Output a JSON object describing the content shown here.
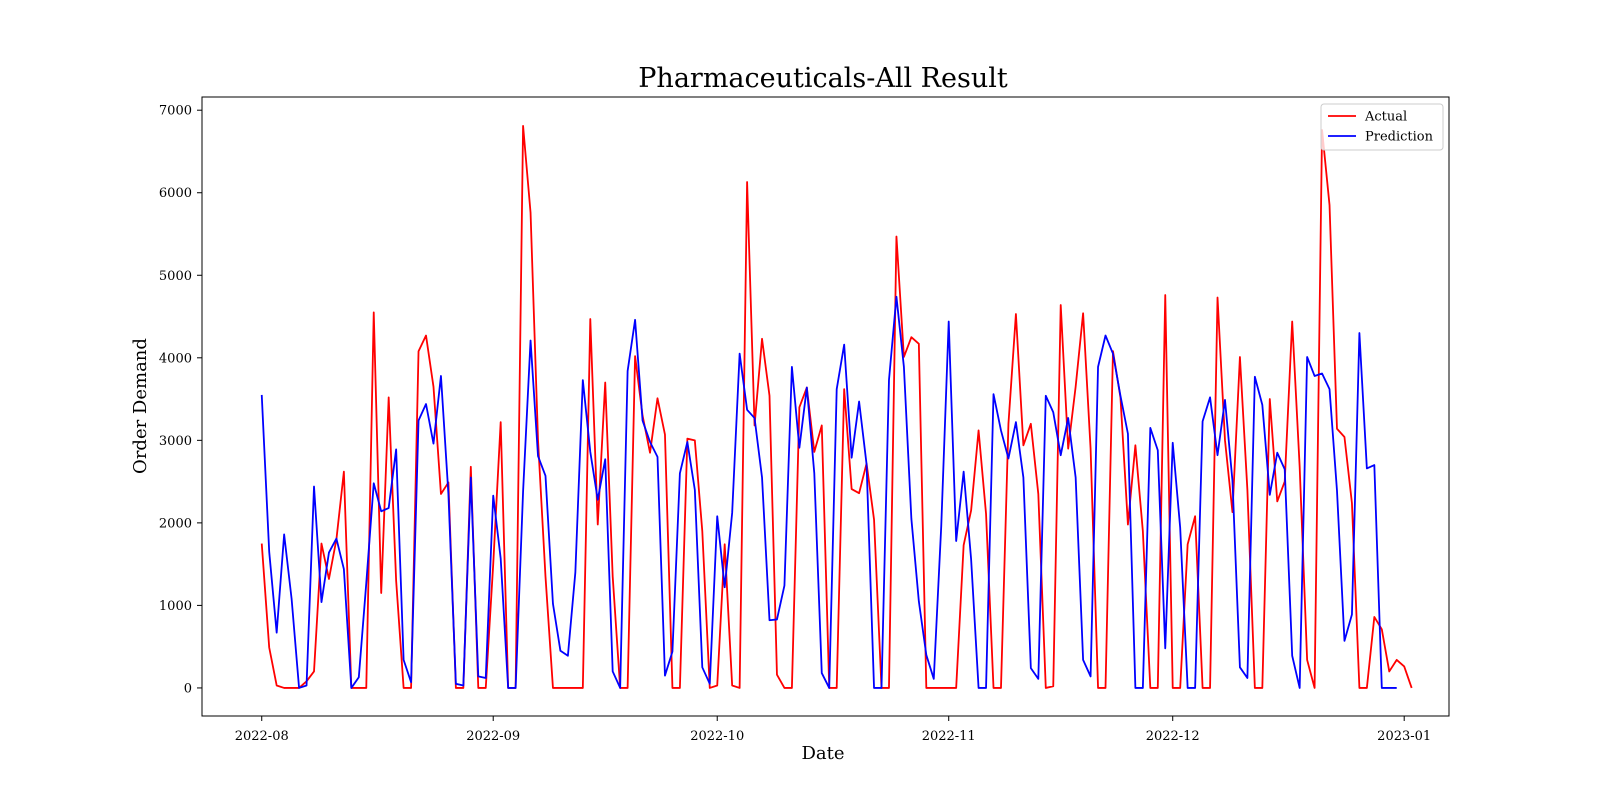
{
  "chart_data": {
    "type": "line",
    "title": "Pharmaceuticals-All Result",
    "xlabel": "Date",
    "ylabel": "Order Demand",
    "x_start": "2022-08-01",
    "x_end": "2022-12-31",
    "xlim": [
      "2022-07-24",
      "2023-01-07"
    ],
    "ylim": [
      -340,
      7160
    ],
    "xticks": [
      "2022-08",
      "2022-09",
      "2022-10",
      "2022-11",
      "2022-12",
      "2023-01"
    ],
    "yticks": [
      0,
      1000,
      2000,
      3000,
      4000,
      5000,
      6000,
      7000
    ],
    "grid": false,
    "legend_position": "top-right",
    "series": [
      {
        "name": "Actual",
        "color": "#ff0000",
        "points": [
          [
            0,
            1750
          ],
          [
            1,
            490
          ],
          [
            2,
            30
          ],
          [
            3,
            0
          ],
          [
            4,
            0
          ],
          [
            5,
            0
          ],
          [
            6,
            80
          ],
          [
            7,
            200
          ],
          [
            8,
            1750
          ],
          [
            9,
            1320
          ],
          [
            10,
            1800
          ],
          [
            11,
            2620
          ],
          [
            12,
            0
          ],
          [
            13,
            0
          ],
          [
            14,
            0
          ],
          [
            15,
            4550
          ],
          [
            16,
            1150
          ],
          [
            17,
            3520
          ],
          [
            18,
            1300
          ],
          [
            19,
            0
          ],
          [
            20,
            0
          ],
          [
            21,
            4080
          ],
          [
            22,
            4270
          ],
          [
            23,
            3650
          ],
          [
            24,
            2350
          ],
          [
            25,
            2490
          ],
          [
            26,
            0
          ],
          [
            27,
            0
          ],
          [
            28,
            2680
          ],
          [
            29,
            0
          ],
          [
            30,
            0
          ],
          [
            31,
            1500
          ],
          [
            32,
            3220
          ],
          [
            33,
            0
          ],
          [
            34,
            0
          ],
          [
            35,
            6810
          ],
          [
            36,
            5760
          ],
          [
            37,
            3000
          ],
          [
            38,
            1350
          ],
          [
            39,
            0
          ],
          [
            40,
            0
          ],
          [
            41,
            0
          ],
          [
            42,
            0
          ],
          [
            43,
            0
          ],
          [
            44,
            4470
          ],
          [
            45,
            1980
          ],
          [
            46,
            3700
          ],
          [
            47,
            1350
          ],
          [
            48,
            0
          ],
          [
            49,
            0
          ],
          [
            50,
            4020
          ],
          [
            51,
            3300
          ],
          [
            52,
            2850
          ],
          [
            53,
            3510
          ],
          [
            54,
            3070
          ],
          [
            55,
            0
          ],
          [
            56,
            0
          ],
          [
            57,
            3020
          ],
          [
            58,
            3000
          ],
          [
            59,
            1900
          ],
          [
            60,
            0
          ],
          [
            61,
            30
          ],
          [
            62,
            1740
          ],
          [
            63,
            30
          ],
          [
            64,
            0
          ],
          [
            65,
            6130
          ],
          [
            66,
            3180
          ],
          [
            67,
            4230
          ],
          [
            68,
            3540
          ],
          [
            69,
            160
          ],
          [
            70,
            0
          ],
          [
            71,
            0
          ],
          [
            72,
            3400
          ],
          [
            73,
            3640
          ],
          [
            74,
            2860
          ],
          [
            75,
            3180
          ],
          [
            76,
            0
          ],
          [
            77,
            0
          ],
          [
            78,
            3620
          ],
          [
            79,
            2410
          ],
          [
            80,
            2360
          ],
          [
            81,
            2720
          ],
          [
            82,
            2040
          ],
          [
            83,
            0
          ],
          [
            84,
            0
          ],
          [
            85,
            5470
          ],
          [
            86,
            4010
          ],
          [
            87,
            4250
          ],
          [
            88,
            4170
          ],
          [
            89,
            0
          ],
          [
            90,
            0
          ],
          [
            91,
            0
          ],
          [
            92,
            0
          ],
          [
            93,
            0
          ],
          [
            94,
            1730
          ],
          [
            95,
            2150
          ],
          [
            96,
            3120
          ],
          [
            97,
            2110
          ],
          [
            98,
            0
          ],
          [
            99,
            0
          ],
          [
            100,
            3200
          ],
          [
            101,
            4530
          ],
          [
            102,
            2940
          ],
          [
            103,
            3200
          ],
          [
            104,
            2350
          ],
          [
            105,
            0
          ],
          [
            106,
            20
          ],
          [
            107,
            4640
          ],
          [
            108,
            2900
          ],
          [
            109,
            3650
          ],
          [
            110,
            4540
          ],
          [
            111,
            2900
          ],
          [
            112,
            0
          ],
          [
            113,
            0
          ],
          [
            114,
            4080
          ],
          [
            115,
            3520
          ],
          [
            116,
            1980
          ],
          [
            117,
            2940
          ],
          [
            118,
            1900
          ],
          [
            119,
            0
          ],
          [
            120,
            0
          ],
          [
            121,
            4760
          ],
          [
            122,
            0
          ],
          [
            123,
            0
          ],
          [
            124,
            1740
          ],
          [
            125,
            2080
          ],
          [
            126,
            0
          ],
          [
            127,
            0
          ],
          [
            128,
            4730
          ],
          [
            129,
            3000
          ],
          [
            130,
            2130
          ],
          [
            131,
            4010
          ],
          [
            132,
            2400
          ],
          [
            133,
            0
          ],
          [
            134,
            0
          ],
          [
            135,
            3500
          ],
          [
            136,
            2260
          ],
          [
            137,
            2500
          ],
          [
            138,
            4440
          ],
          [
            139,
            2680
          ],
          [
            140,
            340
          ],
          [
            141,
            0
          ],
          [
            142,
            6760
          ],
          [
            143,
            5850
          ],
          [
            144,
            3140
          ],
          [
            145,
            3040
          ],
          [
            146,
            2240
          ],
          [
            147,
            0
          ],
          [
            148,
            0
          ],
          [
            149,
            860
          ],
          [
            150,
            710
          ],
          [
            151,
            200
          ],
          [
            152,
            340
          ],
          [
            153,
            260
          ],
          [
            154,
            0
          ]
        ]
      },
      {
        "name": "Prediction",
        "color": "#0000ff",
        "points": [
          [
            0,
            3550
          ],
          [
            1,
            1650
          ],
          [
            2,
            670
          ],
          [
            3,
            1860
          ],
          [
            4,
            1080
          ],
          [
            5,
            0
          ],
          [
            6,
            30
          ],
          [
            7,
            2440
          ],
          [
            8,
            1040
          ],
          [
            9,
            1640
          ],
          [
            10,
            1810
          ],
          [
            11,
            1440
          ],
          [
            12,
            0
          ],
          [
            13,
            130
          ],
          [
            14,
            1270
          ],
          [
            15,
            2480
          ],
          [
            16,
            2140
          ],
          [
            17,
            2180
          ],
          [
            18,
            2890
          ],
          [
            19,
            340
          ],
          [
            20,
            70
          ],
          [
            21,
            3240
          ],
          [
            22,
            3440
          ],
          [
            23,
            2960
          ],
          [
            24,
            3780
          ],
          [
            25,
            2350
          ],
          [
            26,
            50
          ],
          [
            27,
            30
          ],
          [
            28,
            2550
          ],
          [
            29,
            140
          ],
          [
            30,
            120
          ],
          [
            31,
            2330
          ],
          [
            32,
            1570
          ],
          [
            33,
            0
          ],
          [
            34,
            0
          ],
          [
            35,
            2380
          ],
          [
            36,
            4210
          ],
          [
            37,
            2810
          ],
          [
            38,
            2570
          ],
          [
            39,
            1020
          ],
          [
            40,
            450
          ],
          [
            41,
            390
          ],
          [
            42,
            1400
          ],
          [
            43,
            3730
          ],
          [
            44,
            2860
          ],
          [
            45,
            2280
          ],
          [
            46,
            2770
          ],
          [
            47,
            200
          ],
          [
            48,
            0
          ],
          [
            49,
            3840
          ],
          [
            50,
            4460
          ],
          [
            51,
            3240
          ],
          [
            52,
            2980
          ],
          [
            53,
            2800
          ],
          [
            54,
            150
          ],
          [
            55,
            440
          ],
          [
            56,
            2600
          ],
          [
            57,
            2980
          ],
          [
            58,
            2400
          ],
          [
            59,
            250
          ],
          [
            60,
            50
          ],
          [
            61,
            2080
          ],
          [
            62,
            1220
          ],
          [
            63,
            2120
          ],
          [
            64,
            4050
          ],
          [
            65,
            3370
          ],
          [
            66,
            3270
          ],
          [
            67,
            2550
          ],
          [
            68,
            820
          ],
          [
            69,
            830
          ],
          [
            70,
            1240
          ],
          [
            71,
            3890
          ],
          [
            72,
            2910
          ],
          [
            73,
            3640
          ],
          [
            74,
            2600
          ],
          [
            75,
            180
          ],
          [
            76,
            0
          ],
          [
            77,
            3620
          ],
          [
            78,
            4160
          ],
          [
            79,
            2790
          ],
          [
            80,
            3470
          ],
          [
            81,
            2710
          ],
          [
            82,
            0
          ],
          [
            83,
            0
          ],
          [
            84,
            3730
          ],
          [
            85,
            4740
          ],
          [
            86,
            3890
          ],
          [
            87,
            2050
          ],
          [
            88,
            1050
          ],
          [
            89,
            400
          ],
          [
            90,
            110
          ],
          [
            91,
            1960
          ],
          [
            92,
            4440
          ],
          [
            93,
            1780
          ],
          [
            94,
            2620
          ],
          [
            95,
            1560
          ],
          [
            96,
            0
          ],
          [
            97,
            0
          ],
          [
            98,
            3560
          ],
          [
            99,
            3120
          ],
          [
            100,
            2780
          ],
          [
            101,
            3220
          ],
          [
            102,
            2550
          ],
          [
            103,
            240
          ],
          [
            104,
            110
          ],
          [
            105,
            3540
          ],
          [
            106,
            3340
          ],
          [
            107,
            2820
          ],
          [
            108,
            3270
          ],
          [
            109,
            2550
          ],
          [
            110,
            340
          ],
          [
            111,
            140
          ],
          [
            112,
            3890
          ],
          [
            113,
            4270
          ],
          [
            114,
            4050
          ],
          [
            115,
            3540
          ],
          [
            116,
            3080
          ],
          [
            117,
            0
          ],
          [
            118,
            0
          ],
          [
            119,
            3150
          ],
          [
            120,
            2880
          ],
          [
            121,
            480
          ],
          [
            122,
            2970
          ],
          [
            123,
            1940
          ],
          [
            124,
            0
          ],
          [
            125,
            0
          ],
          [
            126,
            3230
          ],
          [
            127,
            3520
          ],
          [
            128,
            2820
          ],
          [
            129,
            3490
          ],
          [
            130,
            2510
          ],
          [
            131,
            250
          ],
          [
            132,
            120
          ],
          [
            133,
            3770
          ],
          [
            134,
            3430
          ],
          [
            135,
            2340
          ],
          [
            136,
            2850
          ],
          [
            137,
            2650
          ],
          [
            138,
            390
          ],
          [
            139,
            0
          ],
          [
            140,
            4010
          ],
          [
            141,
            3780
          ],
          [
            142,
            3810
          ],
          [
            143,
            3620
          ],
          [
            144,
            2390
          ],
          [
            145,
            570
          ],
          [
            146,
            890
          ],
          [
            147,
            4300
          ],
          [
            148,
            2660
          ],
          [
            149,
            2700
          ],
          [
            150,
            0
          ],
          [
            151,
            0
          ],
          [
            152,
            0
          ]
        ]
      }
    ]
  }
}
